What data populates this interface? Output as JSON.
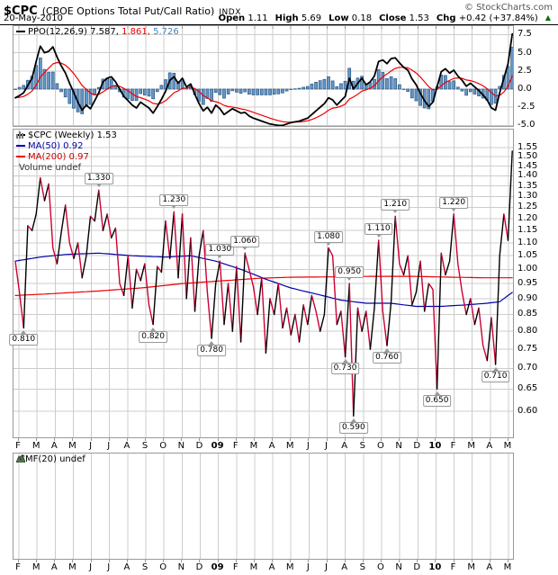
{
  "header": {
    "symbol": "$CPC",
    "name": "(CBOE Options Total Put/Call Ratio)",
    "exchange": "INDX",
    "copyright": "© StockCharts.com",
    "date": "20-May-2010",
    "quote": [
      {
        "label": "Open",
        "value": "1.11"
      },
      {
        "label": "High",
        "value": "5.69"
      },
      {
        "label": "Low",
        "value": "0.18"
      },
      {
        "label": "Close",
        "value": "1.53"
      },
      {
        "label": "Chg",
        "value": "+0.42 (+37.84%)"
      }
    ],
    "change_direction": "up",
    "up_color": "#007000"
  },
  "ppo_panel": {
    "legend": {
      "indicator": "PPO(12,26,9)",
      "value_ppo": "7.587,",
      "value_signal": "1.861,",
      "value_hist": "5.726"
    }
  },
  "main_panel": {
    "legend": [
      {
        "text": "$CPC (Weekly) 1.53",
        "color": "#000000"
      },
      {
        "text": "MA(50) 0.92",
        "color": "#0000AA"
      },
      {
        "text": "MA(200) 0.97",
        "color": "#EE0000"
      },
      {
        "text": "Volume undef",
        "color": "#333333"
      }
    ]
  },
  "cmf_panel": {
    "legend": "CMF(20) undef"
  },
  "axis_months": {
    "labels": [
      "F",
      "M",
      "A",
      "M",
      "J",
      "J",
      "A",
      "S",
      "O",
      "N",
      "D",
      "09",
      "F",
      "M",
      "A",
      "M",
      "J",
      "J",
      "A",
      "S",
      "O",
      "N",
      "D",
      "10",
      "F",
      "M",
      "A",
      "M"
    ],
    "bold_indices": [
      11,
      23
    ]
  },
  "colors": {
    "grid": "#CCCCCC",
    "panel_border": "#999999",
    "hist_fill": "#6496C8",
    "hist_stroke": "#2A5783",
    "ppo_line": "#000000",
    "signal_line": "#EE0000",
    "price_up": "#000000",
    "price_down": "#CC0033",
    "ma50": "#0000AA",
    "ma200": "#EE0000"
  },
  "chart_data": [
    {
      "panel": "ppo",
      "type": "bar+line",
      "title": "PPO(12,26,9)",
      "x_range": "Feb-2008 to May-2010, weekly",
      "ylim": [
        -5.8,
        8.2
      ],
      "yticks": [
        7.5,
        5.0,
        2.5,
        0.0,
        -2.5,
        -5.0
      ],
      "series": [
        {
          "name": "ppo-line",
          "values": [
            -1.2,
            -0.9,
            -0.5,
            0.5,
            1.5,
            3.8,
            5.9,
            5.0,
            5.2,
            5.8,
            4.4,
            3.2,
            2.2,
            0.8,
            -0.5,
            -1.8,
            -2.9,
            -2.2,
            -2.7,
            -1.6,
            -0.5,
            1.0,
            1.5,
            1.7,
            1.0,
            0.0,
            -1.0,
            -1.6,
            -2.2,
            -2.6,
            -1.8,
            -2.2,
            -2.6,
            -3.3,
            -2.4,
            -1.4,
            -0.3,
            1.2,
            1.7,
            0.8,
            1.5,
            0.3,
            0.7,
            -0.7,
            -2.0,
            -3.0,
            -2.5,
            -3.3,
            -2.2,
            -2.7,
            -3.5,
            -3.1,
            -2.7,
            -3.0,
            -3.3,
            -3.2,
            -3.7,
            -4.0,
            -4.2,
            -4.4,
            -4.6,
            -4.8,
            -4.9,
            -5.0,
            -5.0,
            -4.8,
            -4.6,
            -4.5,
            -4.4,
            -4.2,
            -4.0,
            -3.5,
            -3.0,
            -2.5,
            -2.0,
            -1.2,
            -1.5,
            -2.2,
            -1.6,
            -1.0,
            1.5,
            0.0,
            0.8,
            1.5,
            0.6,
            1.0,
            1.8,
            3.8,
            4.0,
            3.5,
            4.2,
            4.3,
            3.6,
            3.0,
            2.6,
            1.4,
            0.6,
            -0.6,
            -1.6,
            -2.4,
            -1.8,
            0.3,
            2.4,
            2.8,
            2.2,
            2.6,
            1.8,
            1.2,
            0.4,
            0.8,
            0.3,
            -0.2,
            -0.8,
            -1.5,
            -2.6,
            -2.9,
            -0.5,
            1.5,
            3.5,
            7.587
          ]
        },
        {
          "name": "signal-line",
          "derived": "ema9_of_ppo",
          "last_shown": 1.861
        },
        {
          "name": "histogram",
          "derived": "ppo_minus_signal",
          "last_shown": 5.726
        }
      ]
    },
    {
      "panel": "price",
      "type": "line",
      "title": "$CPC Weekly close",
      "yscale": "log",
      "ylim": [
        0.57,
        1.57
      ],
      "yticks": [
        1.55,
        1.5,
        1.45,
        1.4,
        1.35,
        1.3,
        1.25,
        1.2,
        1.15,
        1.1,
        1.05,
        1.0,
        0.95,
        0.9,
        0.85,
        0.8,
        0.75,
        0.7,
        0.65,
        0.6
      ],
      "series": [
        {
          "name": "close",
          "values": [
            1.03,
            0.92,
            0.81,
            1.17,
            1.15,
            1.22,
            1.39,
            1.28,
            1.36,
            1.08,
            1.02,
            1.14,
            1.26,
            1.1,
            1.04,
            1.1,
            0.97,
            1.05,
            1.21,
            1.19,
            1.33,
            1.15,
            1.22,
            1.12,
            1.16,
            0.95,
            0.91,
            1.05,
            0.87,
            1.0,
            0.96,
            1.02,
            0.88,
            0.82,
            1.01,
            0.99,
            1.19,
            1.04,
            1.23,
            0.97,
            1.22,
            0.9,
            1.12,
            0.86,
            1.05,
            1.15,
            0.92,
            0.78,
            0.95,
            1.03,
            0.82,
            0.95,
            0.8,
            1.01,
            0.77,
            1.06,
            1.0,
            0.94,
            0.85,
            0.97,
            0.74,
            0.9,
            0.85,
            0.95,
            0.81,
            0.87,
            0.79,
            0.85,
            0.77,
            0.88,
            0.82,
            0.91,
            0.86,
            0.8,
            0.85,
            1.08,
            1.05,
            0.82,
            0.86,
            0.73,
            0.95,
            0.59,
            0.87,
            0.8,
            0.86,
            0.75,
            0.87,
            1.11,
            0.86,
            0.76,
            0.89,
            1.21,
            1.02,
            0.98,
            1.05,
            0.88,
            0.92,
            1.03,
            0.86,
            0.95,
            0.93,
            0.65,
            1.06,
            0.98,
            1.03,
            1.22,
            1.02,
            0.92,
            0.85,
            0.9,
            0.82,
            0.87,
            0.76,
            0.72,
            0.84,
            0.71,
            1.05,
            1.22,
            1.11,
            1.53
          ]
        },
        {
          "name": "ma50",
          "anchors": [
            [
              0,
              1.03
            ],
            [
              6,
              1.045
            ],
            [
              12,
              1.055
            ],
            [
              20,
              1.06
            ],
            [
              28,
              1.05
            ],
            [
              36,
              1.045
            ],
            [
              42,
              1.05
            ],
            [
              48,
              1.03
            ],
            [
              54,
              1.0
            ],
            [
              60,
              0.965
            ],
            [
              66,
              0.935
            ],
            [
              72,
              0.915
            ],
            [
              78,
              0.895
            ],
            [
              84,
              0.885
            ],
            [
              90,
              0.885
            ],
            [
              96,
              0.875
            ],
            [
              102,
              0.875
            ],
            [
              108,
              0.88
            ],
            [
              113,
              0.885
            ],
            [
              116,
              0.89
            ],
            [
              119,
              0.92
            ]
          ]
        },
        {
          "name": "ma200",
          "anchors": [
            [
              0,
              0.91
            ],
            [
              10,
              0.917
            ],
            [
              20,
              0.925
            ],
            [
              30,
              0.935
            ],
            [
              40,
              0.95
            ],
            [
              50,
              0.96
            ],
            [
              58,
              0.968
            ],
            [
              66,
              0.972
            ],
            [
              75,
              0.973
            ],
            [
              85,
              0.975
            ],
            [
              95,
              0.975
            ],
            [
              105,
              0.972
            ],
            [
              112,
              0.97
            ],
            [
              119,
              0.97
            ]
          ]
        }
      ],
      "annotations": [
        {
          "week": 2,
          "label": "0.810",
          "side": "below"
        },
        {
          "week": 20,
          "label": "1.330",
          "side": "above"
        },
        {
          "week": 33,
          "label": "0.820",
          "side": "below"
        },
        {
          "week": 38,
          "label": "1.230",
          "side": "above"
        },
        {
          "week": 47,
          "label": "0.780",
          "side": "below"
        },
        {
          "week": 49,
          "label": "1.030",
          "side": "above"
        },
        {
          "week": 55,
          "label": "1.060",
          "side": "above"
        },
        {
          "week": 75,
          "label": "1.080",
          "side": "above"
        },
        {
          "week": 79,
          "label": "0.730",
          "side": "below"
        },
        {
          "week": 80,
          "label": "0.950",
          "side": "above"
        },
        {
          "week": 81,
          "label": "0.590",
          "side": "below"
        },
        {
          "week": 87,
          "label": "1.110",
          "side": "above"
        },
        {
          "week": 89,
          "label": "0.760",
          "side": "below"
        },
        {
          "week": 91,
          "label": "1.210",
          "side": "above"
        },
        {
          "week": 101,
          "label": "0.650",
          "side": "below"
        },
        {
          "week": 105,
          "label": "1.220",
          "side": "above"
        },
        {
          "week": 115,
          "label": "0.710",
          "side": "below"
        }
      ]
    },
    {
      "panel": "cmf",
      "type": "empty",
      "title": "CMF(20)",
      "value": "undef"
    }
  ]
}
